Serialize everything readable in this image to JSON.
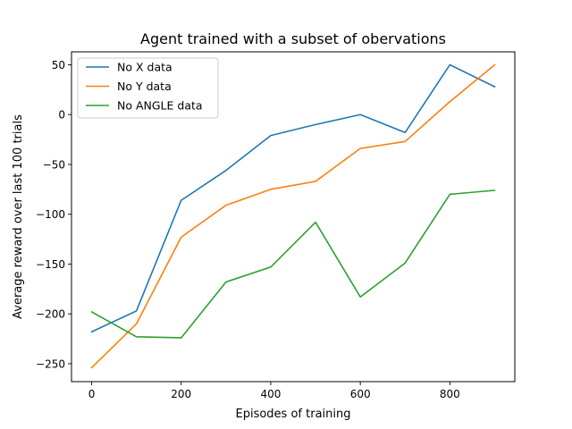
{
  "chart_data": {
    "type": "line",
    "title": "Agent trained with a subset of obervations",
    "xlabel": "Episodes of training",
    "ylabel": "Average reward over last 100 trials",
    "xlim": [
      -45,
      945
    ],
    "ylim": [
      -268,
      63
    ],
    "xticks": [
      0,
      200,
      400,
      600,
      800
    ],
    "yticks": [
      50,
      0,
      -50,
      -100,
      -150,
      -200,
      -250
    ],
    "grid": false,
    "legend_position": "top-left",
    "x": [
      0,
      100,
      200,
      300,
      400,
      500,
      600,
      700,
      800,
      900
    ],
    "series": [
      {
        "name": "No X data",
        "color": "#1f77b4",
        "values": [
          -218,
          -197,
          -86,
          -56,
          -21,
          -10,
          0,
          -18,
          50,
          28
        ]
      },
      {
        "name": "No Y data",
        "color": "#ff7f0e",
        "values": [
          -254,
          -210,
          -123,
          -91,
          -75,
          -67,
          -34,
          -27,
          13,
          50
        ]
      },
      {
        "name": "No ANGLE data",
        "color": "#2ca02c",
        "values": [
          -198,
          -223,
          -224,
          -168,
          -153,
          -108,
          -183,
          -149,
          -80,
          -76
        ]
      }
    ]
  }
}
